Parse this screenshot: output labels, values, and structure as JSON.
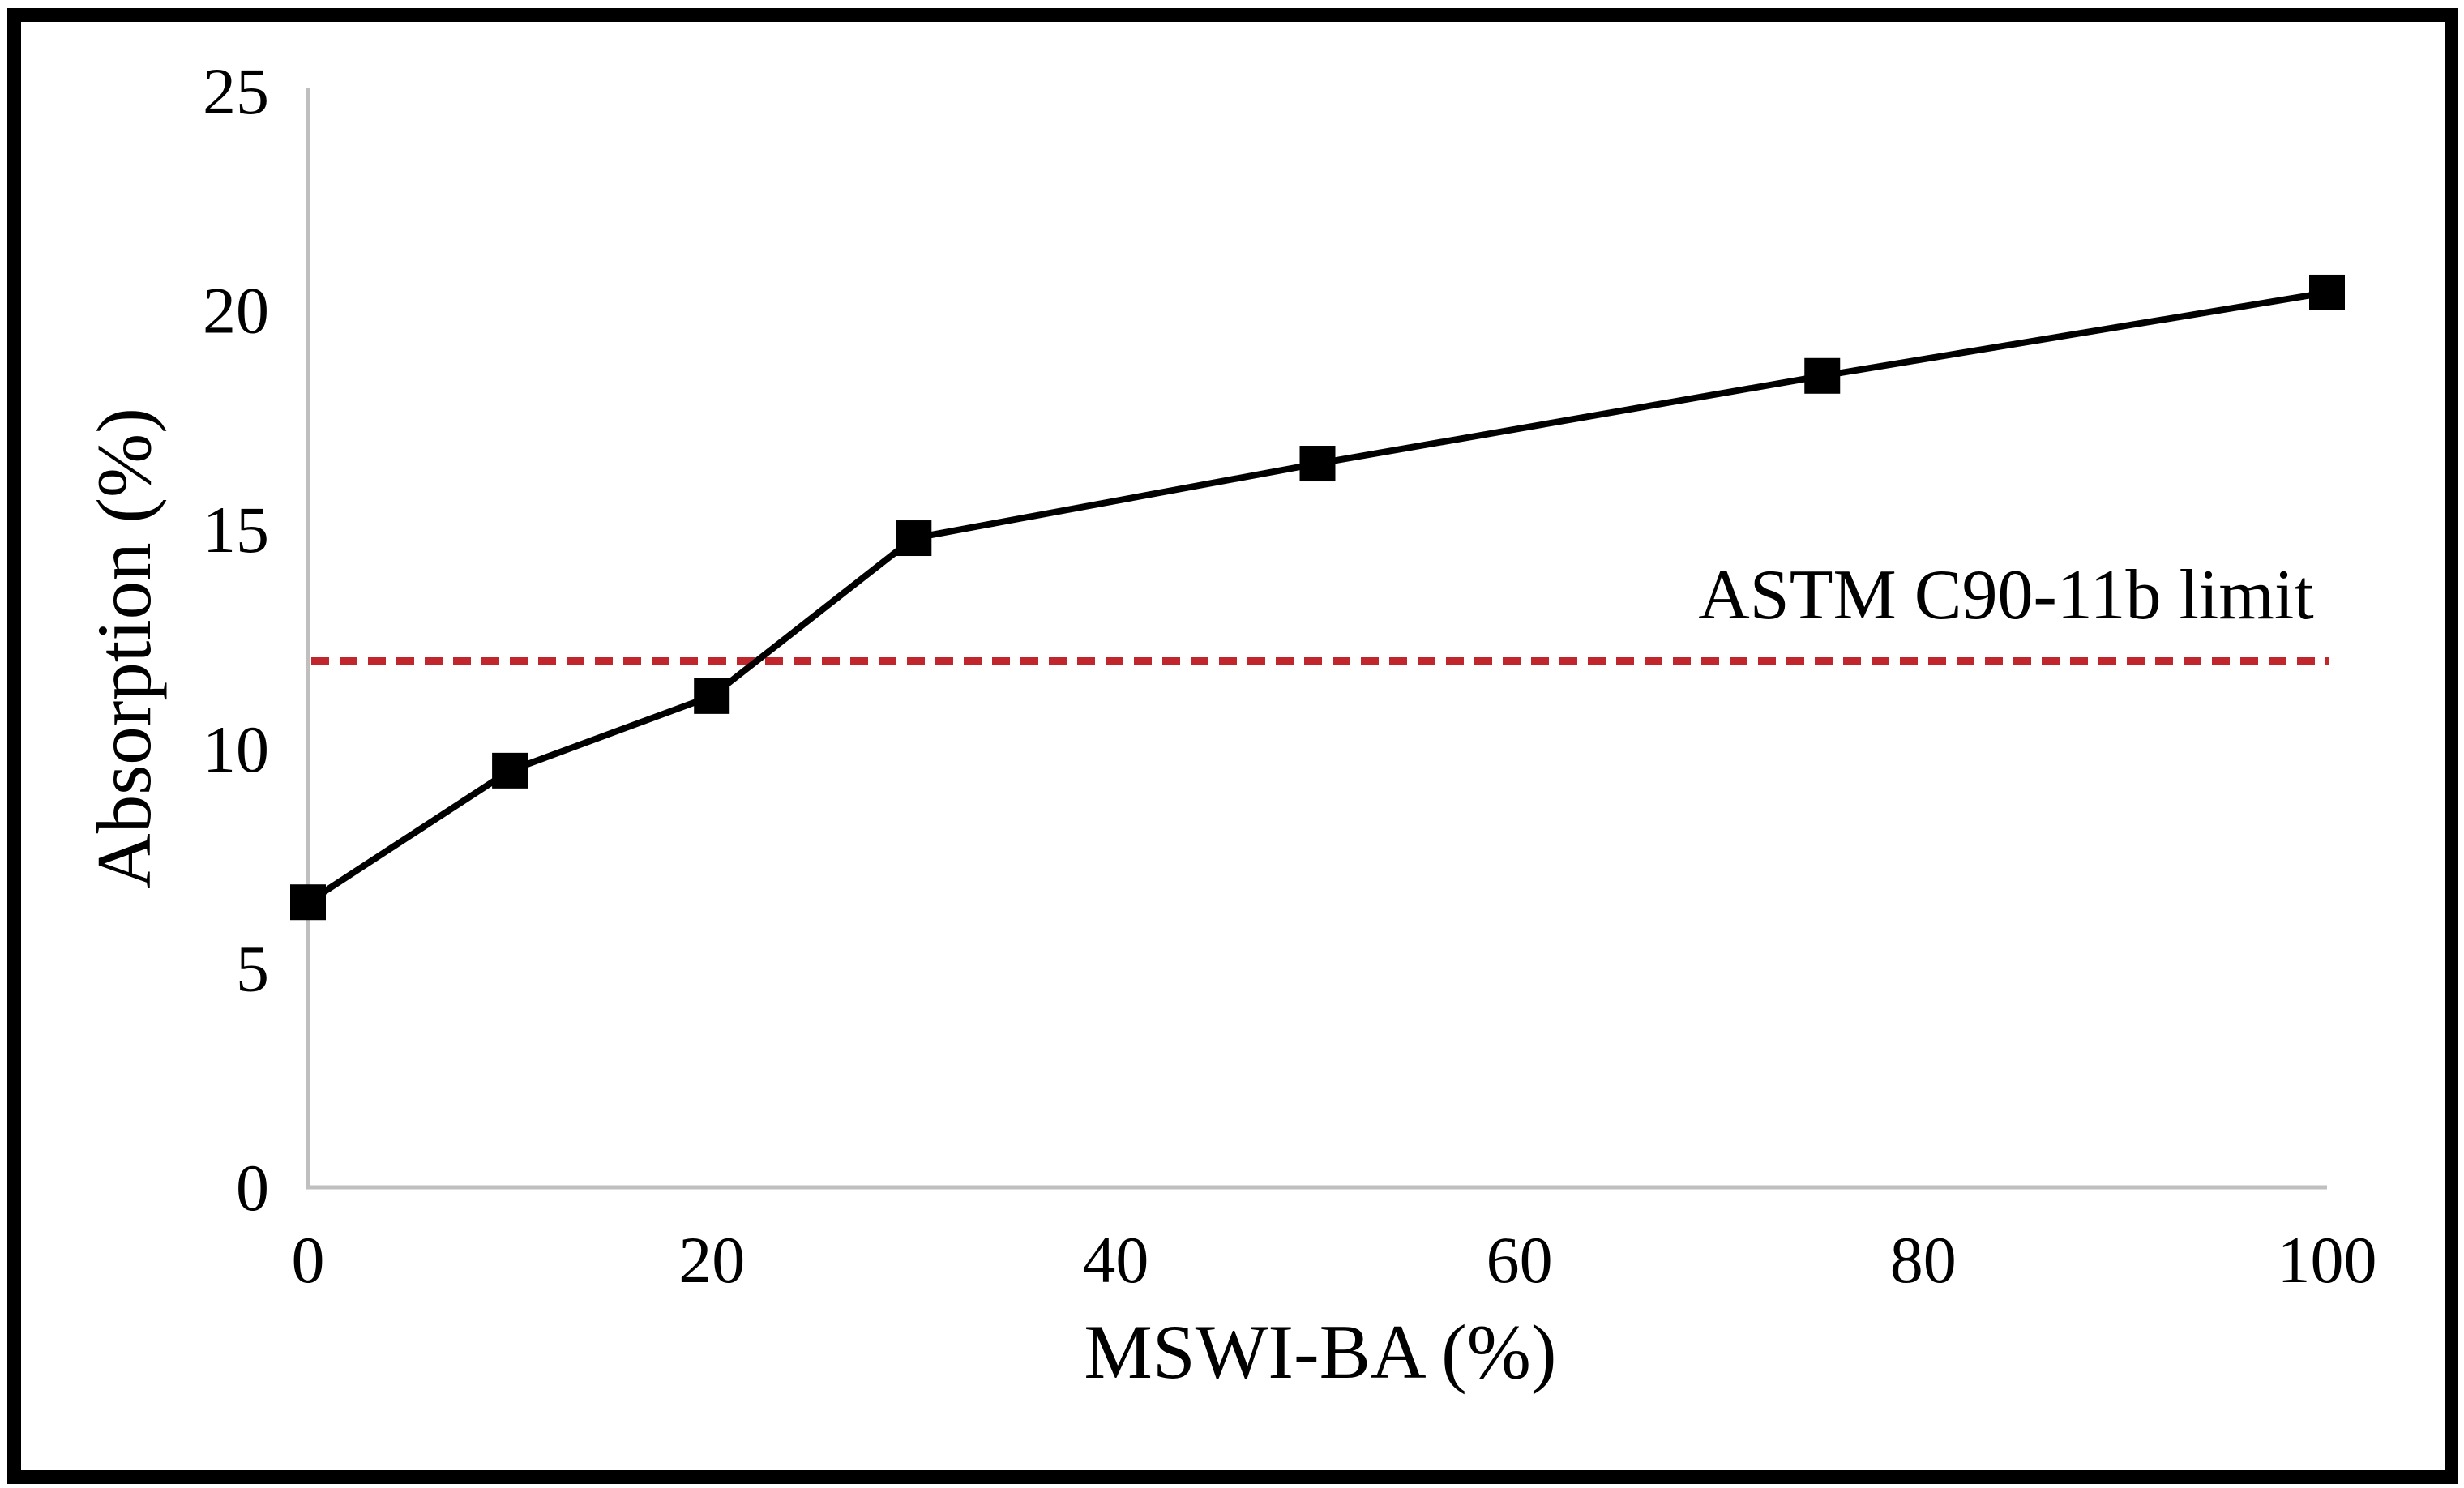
{
  "figure": {
    "background_color": "#ffffff",
    "border_color": "#000000"
  },
  "chart_data": {
    "type": "line",
    "title": "",
    "xlabel": "MSWI-BA (%)",
    "ylabel": "Absorption (%)",
    "x": [
      0,
      10,
      20,
      30,
      50,
      75,
      100
    ],
    "series": [
      {
        "name": "Absorption",
        "values": [
          6.5,
          9.5,
          11.2,
          14.8,
          16.5,
          18.5,
          20.4
        ],
        "color": "#000000",
        "marker": "square"
      }
    ],
    "xlim": [
      0,
      100
    ],
    "ylim": [
      0,
      25
    ],
    "x_ticks": [
      0,
      20,
      40,
      60,
      80,
      100
    ],
    "y_ticks": [
      0,
      5,
      10,
      15,
      20,
      25
    ],
    "grid": false,
    "legend": false,
    "axis_color": "#bfbfbf",
    "reference_line": {
      "label": "ASTM C90-11b limit",
      "value": 12,
      "color": "#c0262c",
      "style": "dashed"
    }
  }
}
